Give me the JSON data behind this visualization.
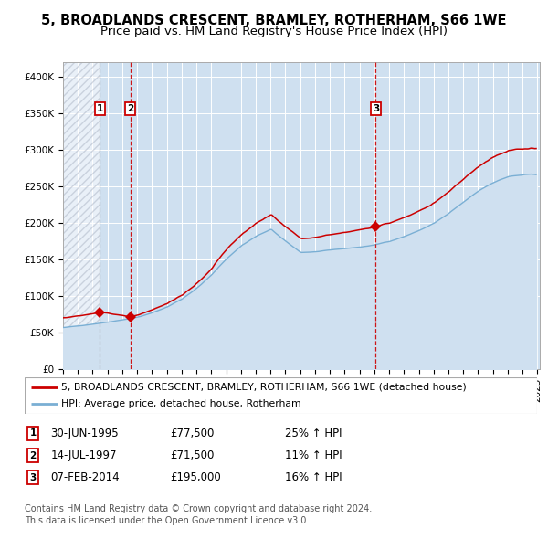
{
  "title": "5, BROADLANDS CRESCENT, BRAMLEY, ROTHERHAM, S66 1WE",
  "subtitle": "Price paid vs. HM Land Registry's House Price Index (HPI)",
  "ylim": [
    0,
    420000
  ],
  "yticks": [
    0,
    50000,
    100000,
    150000,
    200000,
    250000,
    300000,
    350000,
    400000
  ],
  "ytick_labels": [
    "£0",
    "£50K",
    "£100K",
    "£150K",
    "£200K",
    "£250K",
    "£300K",
    "£350K",
    "£400K"
  ],
  "sale_dates": [
    "1995-06-30",
    "1997-07-14",
    "2014-02-07"
  ],
  "sale_prices": [
    77500,
    71500,
    195000
  ],
  "sale_labels": [
    "1",
    "2",
    "3"
  ],
  "property_line_color": "#cc0000",
  "hpi_line_color": "#7aafd4",
  "hpi_fill_color": "#cfe0f0",
  "vline_colors": [
    "#aaaaaa",
    "#cc0000",
    "#cc0000"
  ],
  "legend_entry1": "5, BROADLANDS CRESCENT, BRAMLEY, ROTHERHAM, S66 1WE (detached house)",
  "legend_entry2": "HPI: Average price, detached house, Rotherham",
  "table_rows": [
    {
      "label": "1",
      "date": "30-JUN-1995",
      "price": "£77,500",
      "hpi": "25% ↑ HPI"
    },
    {
      "label": "2",
      "date": "14-JUL-1997",
      "price": "£71,500",
      "hpi": "11% ↑ HPI"
    },
    {
      "label": "3",
      "date": "07-FEB-2014",
      "price": "£195,000",
      "hpi": "16% ↑ HPI"
    }
  ],
  "footnote1": "Contains HM Land Registry data © Crown copyright and database right 2024.",
  "footnote2": "This data is licensed under the Open Government Licence v3.0.",
  "bg_color": "#cfe0f0",
  "hatch_edgecolor": "#b0b8c8",
  "title_fontsize": 10.5,
  "subtitle_fontsize": 9.5,
  "tick_fontsize": 7.5,
  "legend_fontsize": 7.8,
  "table_fontsize": 8.5,
  "footnote_fontsize": 7.0
}
